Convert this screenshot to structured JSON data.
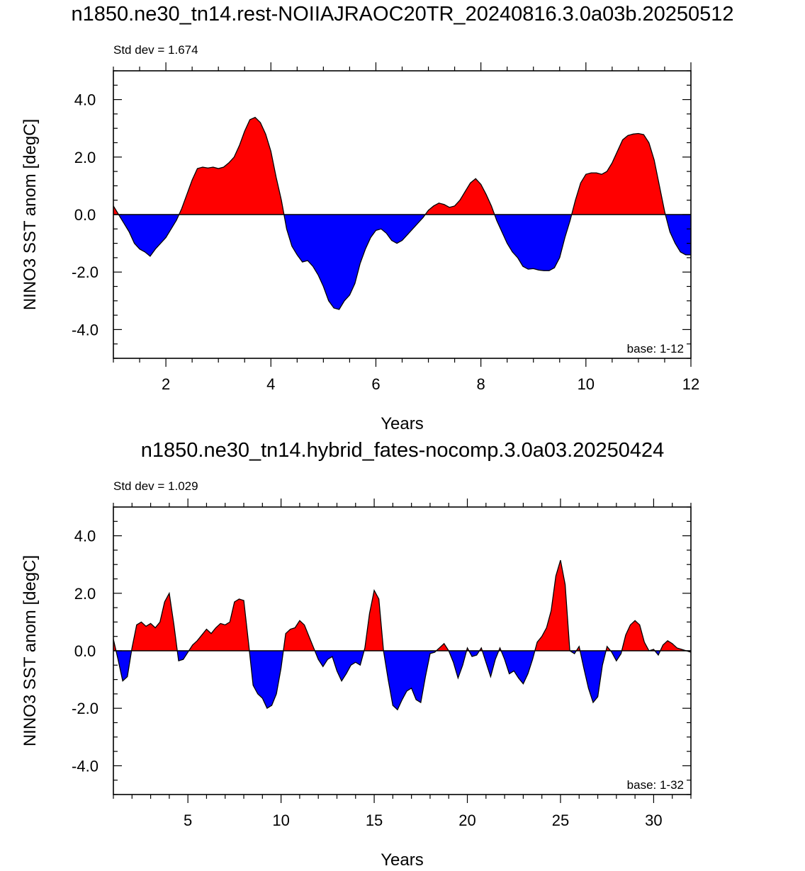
{
  "chart_data": [
    {
      "type": "area",
      "title": "n1850.ne30_tn14.rest-NOIIAJRAOC20TR_20240816.3.0a03b.20250512",
      "subtitle": "Std dev = 1.674",
      "annotation": "base: 1-12",
      "xlabel": "Years",
      "ylabel": "NINO3 SST anom [degC]",
      "xlim": [
        1,
        12
      ],
      "ylim": [
        -5,
        5
      ],
      "xticks": [
        2,
        4,
        6,
        8,
        10,
        12
      ],
      "xtick_labels": [
        "2",
        "4",
        "6",
        "8",
        "10",
        "12"
      ],
      "yticks": [
        4,
        2,
        0,
        -2,
        -4
      ],
      "ytick_labels": [
        "4.0",
        "2.0",
        "0.0",
        "-2.0",
        "-4.0"
      ],
      "positive_color": "#ff0000",
      "negative_color": "#0000ff",
      "grid": false,
      "x": [
        1.0,
        1.1,
        1.2,
        1.3,
        1.4,
        1.5,
        1.6,
        1.7,
        1.8,
        1.9,
        2.0,
        2.1,
        2.2,
        2.3,
        2.4,
        2.5,
        2.6,
        2.7,
        2.8,
        2.9,
        3.0,
        3.1,
        3.2,
        3.3,
        3.4,
        3.5,
        3.6,
        3.7,
        3.8,
        3.9,
        4.0,
        4.1,
        4.2,
        4.3,
        4.4,
        4.5,
        4.6,
        4.7,
        4.8,
        4.9,
        5.0,
        5.1,
        5.2,
        5.3,
        5.4,
        5.5,
        5.6,
        5.7,
        5.8,
        5.9,
        6.0,
        6.1,
        6.2,
        6.3,
        6.4,
        6.5,
        6.6,
        6.7,
        6.8,
        6.9,
        7.0,
        7.1,
        7.2,
        7.3,
        7.4,
        7.5,
        7.6,
        7.7,
        7.8,
        7.9,
        8.0,
        8.1,
        8.2,
        8.3,
        8.4,
        8.5,
        8.6,
        8.7,
        8.8,
        8.9,
        9.0,
        9.1,
        9.2,
        9.3,
        9.4,
        9.5,
        9.6,
        9.7,
        9.8,
        9.9,
        10.0,
        10.1,
        10.2,
        10.3,
        10.4,
        10.5,
        10.6,
        10.7,
        10.8,
        10.9,
        11.0,
        11.1,
        11.2,
        11.3,
        11.4,
        11.5,
        11.6,
        11.7,
        11.8,
        11.9,
        12.0
      ],
      "values": [
        0.3,
        0.0,
        -0.3,
        -0.6,
        -1.0,
        -1.2,
        -1.3,
        -1.45,
        -1.2,
        -1.0,
        -0.8,
        -0.5,
        -0.2,
        0.2,
        0.7,
        1.2,
        1.6,
        1.65,
        1.62,
        1.65,
        1.6,
        1.65,
        1.8,
        2.0,
        2.4,
        2.9,
        3.3,
        3.38,
        3.2,
        2.8,
        2.2,
        1.3,
        0.5,
        -0.5,
        -1.1,
        -1.4,
        -1.65,
        -1.6,
        -1.8,
        -2.1,
        -2.5,
        -3.0,
        -3.25,
        -3.3,
        -3.0,
        -2.8,
        -2.4,
        -1.7,
        -1.2,
        -0.8,
        -0.55,
        -0.5,
        -0.65,
        -0.9,
        -1.0,
        -0.9,
        -0.7,
        -0.5,
        -0.3,
        -0.1,
        0.15,
        0.3,
        0.4,
        0.35,
        0.25,
        0.3,
        0.5,
        0.8,
        1.1,
        1.25,
        1.05,
        0.7,
        0.3,
        -0.2,
        -0.6,
        -1.0,
        -1.3,
        -1.5,
        -1.8,
        -1.9,
        -1.88,
        -1.93,
        -1.95,
        -1.95,
        -1.85,
        -1.5,
        -0.8,
        -0.2,
        0.5,
        1.1,
        1.4,
        1.45,
        1.45,
        1.4,
        1.5,
        1.8,
        2.2,
        2.6,
        2.75,
        2.8,
        2.82,
        2.78,
        2.5,
        1.9,
        1.0,
        0.1,
        -0.6,
        -1.0,
        -1.3,
        -1.4,
        -1.4
      ]
    },
    {
      "type": "area",
      "title": "n1850.ne30_tn14.hybrid_fates-nocomp.3.0a03.20250424",
      "subtitle": "Std dev = 1.029",
      "annotation": "base: 1-32",
      "xlabel": "Years",
      "ylabel": "NINO3 SST anom [degC]",
      "xlim": [
        1,
        32
      ],
      "ylim": [
        -5,
        5
      ],
      "xticks": [
        5,
        10,
        15,
        20,
        25,
        30
      ],
      "xtick_labels": [
        "5",
        "10",
        "15",
        "20",
        "25",
        "30"
      ],
      "yticks": [
        4,
        2,
        0,
        -2,
        -4
      ],
      "ytick_labels": [
        "4.0",
        "2.0",
        "0.0",
        "-2.0",
        "-4.0"
      ],
      "positive_color": "#ff0000",
      "negative_color": "#0000ff",
      "grid": false,
      "x": [
        1.0,
        1.25,
        1.5,
        1.75,
        2.0,
        2.25,
        2.5,
        2.75,
        3.0,
        3.25,
        3.5,
        3.75,
        4.0,
        4.25,
        4.5,
        4.75,
        5.0,
        5.25,
        5.5,
        5.75,
        6.0,
        6.25,
        6.5,
        6.75,
        7.0,
        7.25,
        7.5,
        7.75,
        8.0,
        8.25,
        8.5,
        8.75,
        9.0,
        9.25,
        9.5,
        9.75,
        10.0,
        10.25,
        10.5,
        10.75,
        11.0,
        11.25,
        11.5,
        11.75,
        12.0,
        12.25,
        12.5,
        12.75,
        13.0,
        13.25,
        13.5,
        13.75,
        14.0,
        14.25,
        14.5,
        14.75,
        15.0,
        15.25,
        15.5,
        15.75,
        16.0,
        16.25,
        16.5,
        16.75,
        17.0,
        17.25,
        17.5,
        17.75,
        18.0,
        18.25,
        18.5,
        18.75,
        19.0,
        19.25,
        19.5,
        19.75,
        20.0,
        20.25,
        20.5,
        20.75,
        21.0,
        21.25,
        21.5,
        21.75,
        22.0,
        22.25,
        22.5,
        22.75,
        23.0,
        23.25,
        23.5,
        23.75,
        24.0,
        24.25,
        24.5,
        24.75,
        25.0,
        25.25,
        25.5,
        25.75,
        26.0,
        26.25,
        26.5,
        26.75,
        27.0,
        27.25,
        27.5,
        27.75,
        28.0,
        28.25,
        28.5,
        28.75,
        29.0,
        29.25,
        29.5,
        29.75,
        30.0,
        30.25,
        30.5,
        30.75,
        31.0,
        31.25,
        31.5,
        31.75,
        32.0
      ],
      "values": [
        0.4,
        -0.3,
        -1.05,
        -0.9,
        0.1,
        0.9,
        1.0,
        0.85,
        0.95,
        0.8,
        1.0,
        1.7,
        2.0,
        0.9,
        -0.35,
        -0.3,
        -0.05,
        0.2,
        0.35,
        0.55,
        0.75,
        0.6,
        0.8,
        0.95,
        0.9,
        1.0,
        1.7,
        1.8,
        1.75,
        0.3,
        -1.2,
        -1.5,
        -1.65,
        -2.0,
        -1.9,
        -1.5,
        -0.6,
        0.6,
        0.75,
        0.8,
        1.05,
        0.9,
        0.5,
        0.1,
        -0.3,
        -0.55,
        -0.3,
        -0.2,
        -0.7,
        -1.05,
        -0.8,
        -0.5,
        -0.4,
        -0.5,
        0.1,
        1.3,
        2.1,
        1.8,
        0.0,
        -1.0,
        -1.9,
        -2.05,
        -1.7,
        -1.4,
        -1.3,
        -1.7,
        -1.8,
        -0.9,
        -0.1,
        -0.05,
        0.1,
        0.25,
        0.0,
        -0.4,
        -0.95,
        -0.5,
        0.1,
        -0.2,
        -0.15,
        0.1,
        -0.4,
        -0.9,
        -0.3,
        0.1,
        -0.3,
        -0.8,
        -0.7,
        -0.95,
        -1.15,
        -0.8,
        -0.3,
        0.3,
        0.5,
        0.8,
        1.4,
        2.6,
        3.15,
        2.3,
        0.0,
        -0.1,
        0.15,
        -0.6,
        -1.3,
        -1.8,
        -1.6,
        -0.5,
        0.15,
        -0.05,
        -0.35,
        -0.1,
        0.55,
        0.9,
        1.05,
        0.9,
        0.3,
        0.0,
        0.05,
        -0.15,
        0.2,
        0.35,
        0.25,
        0.1,
        0.05,
        0.0,
        -0.05
      ]
    }
  ]
}
